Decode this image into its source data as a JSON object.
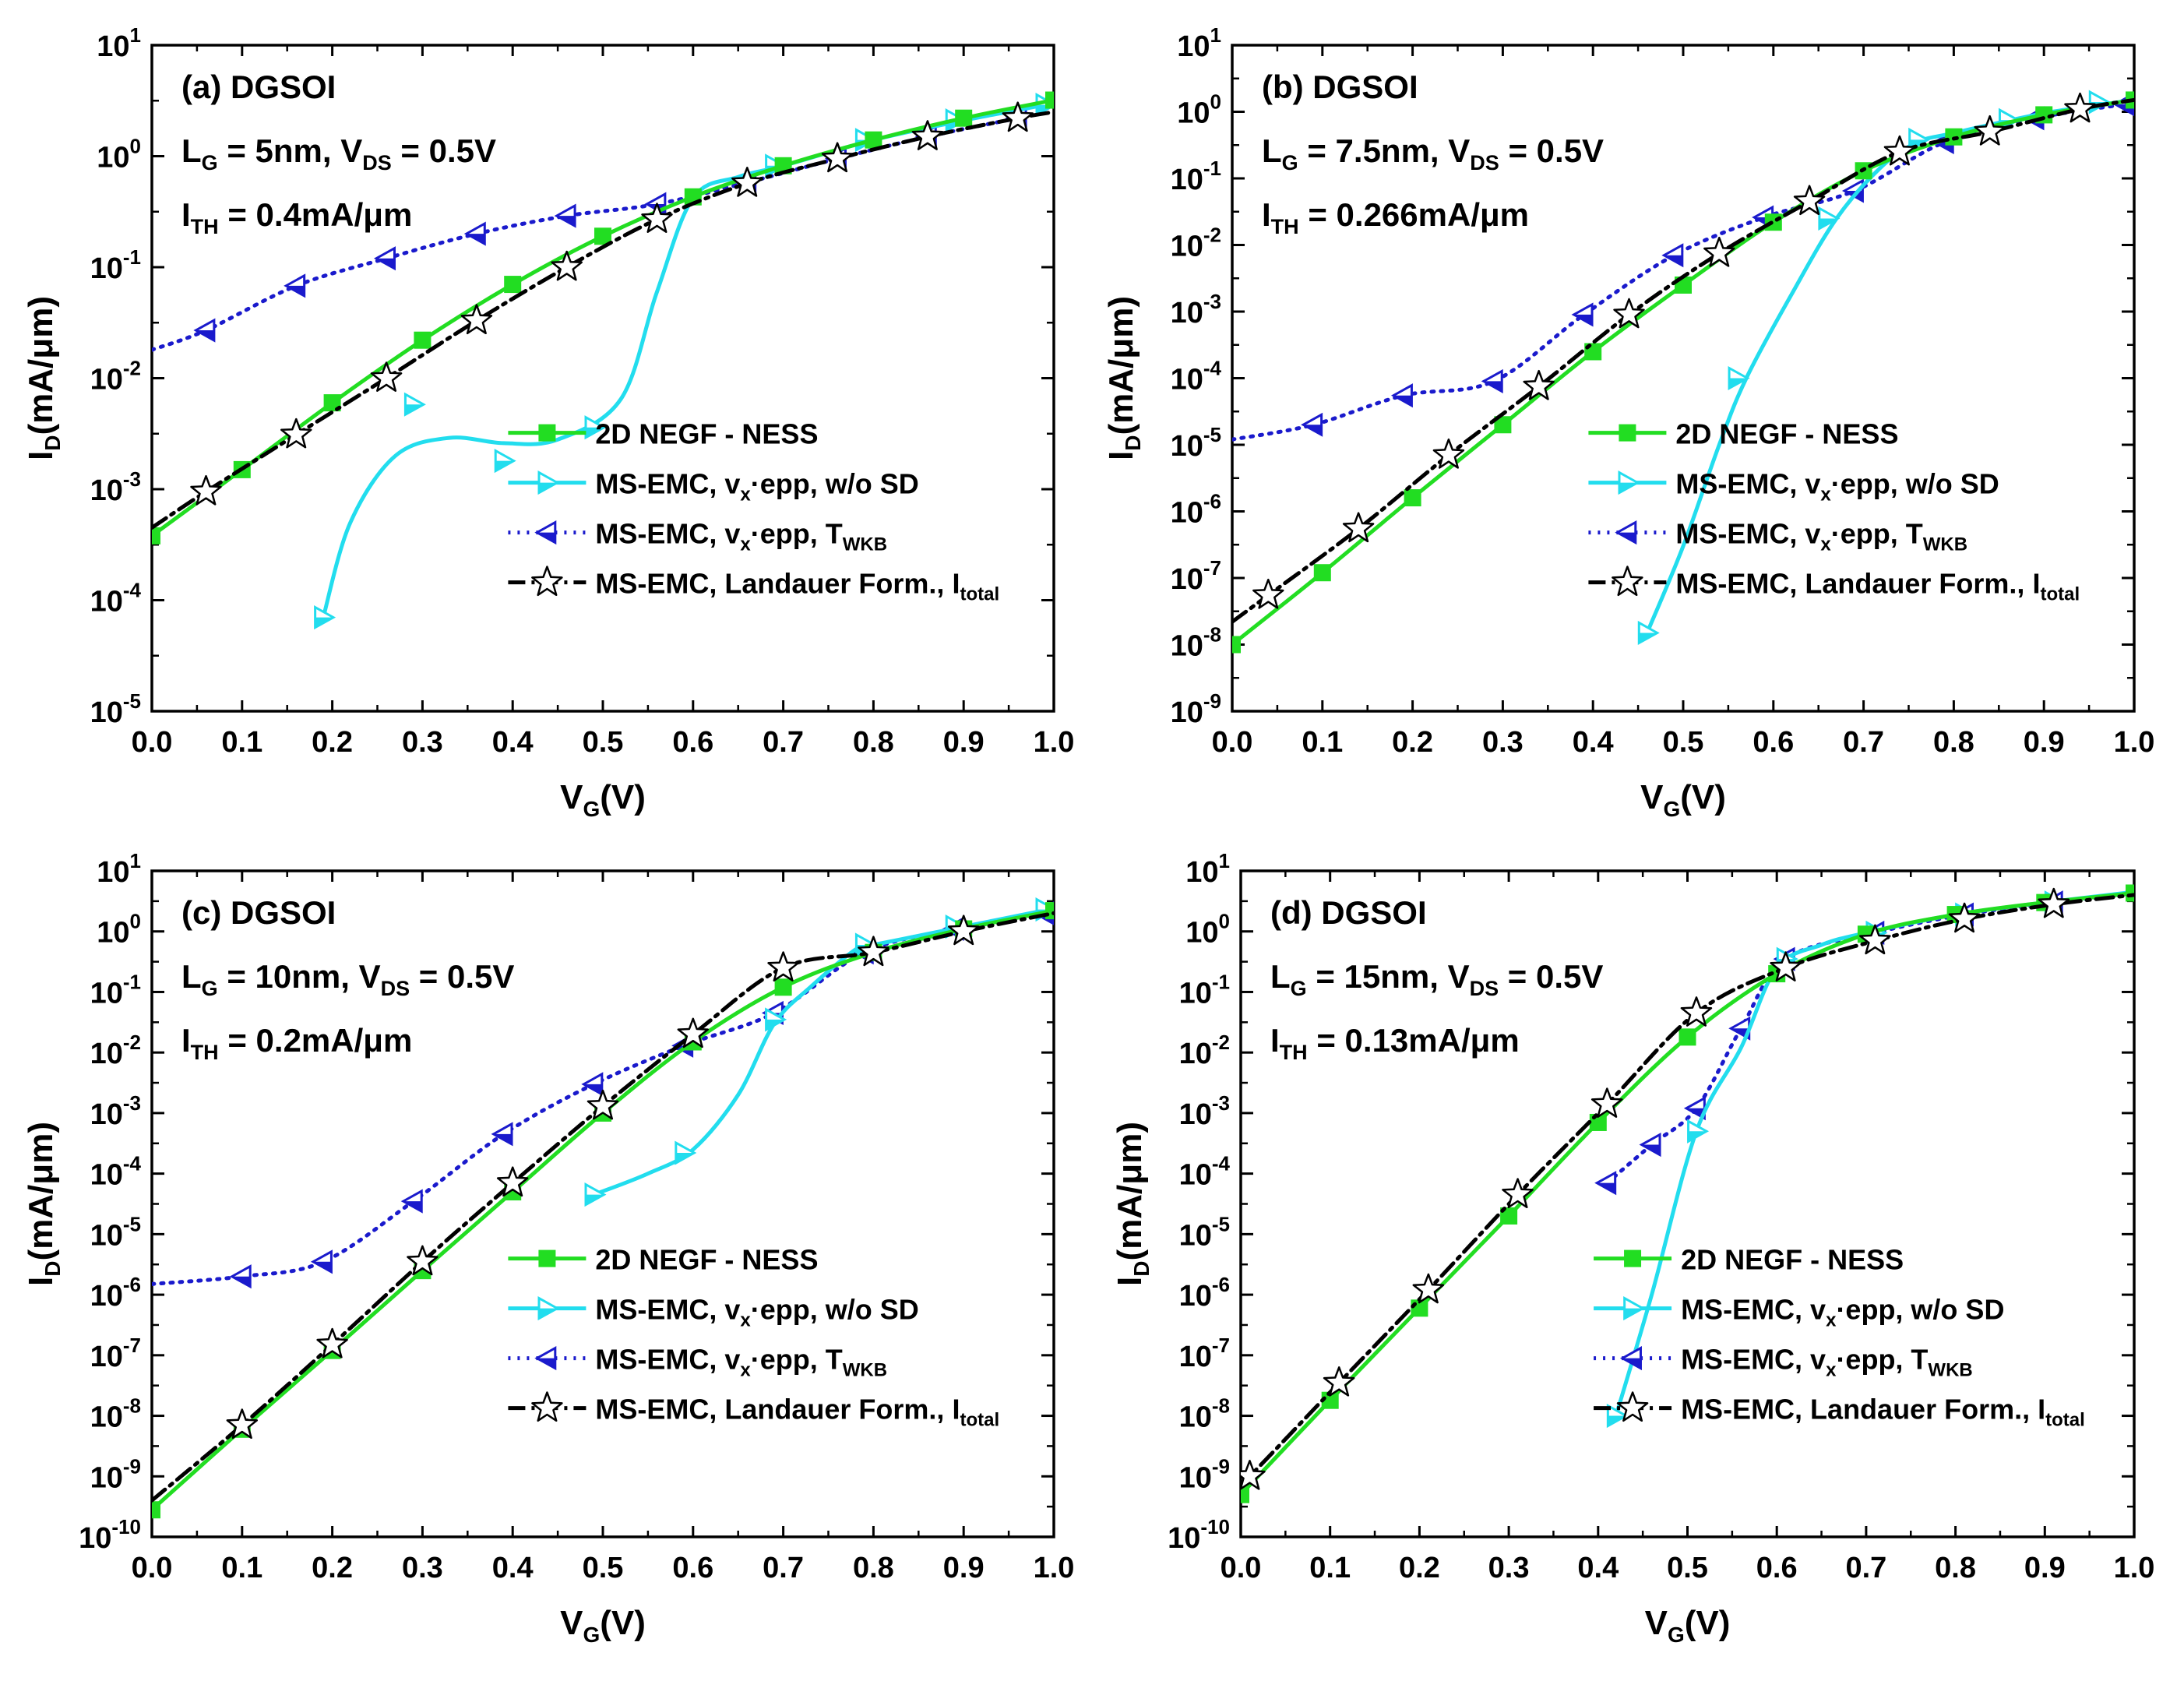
{
  "figure": {
    "background": "#ffffff"
  },
  "styles": {
    "negf": {
      "color": "#22dd22",
      "dash": "solid",
      "marker": "square",
      "legend": "2D NEGF - NESS"
    },
    "nosd": {
      "color": "#22ddee",
      "dash": "solid",
      "marker": "tri-right",
      "legend_main": "MS-EMC, v",
      "legend_sub": "x",
      "legend_rest": "·epp, w/o SD"
    },
    "wkb": {
      "color": "#1a1acc",
      "dash": "dotted",
      "marker": "tri-left",
      "legend_main": "MS-EMC, v",
      "legend_sub": "x",
      "legend_rest": "·epp, T",
      "legend_sub2": "WKB"
    },
    "land": {
      "color": "#000000",
      "dash": "dashdot",
      "marker": "star",
      "legend": "MS-EMC, Landauer Form., I",
      "legend_sub": "total"
    }
  },
  "chart_data": [
    {
      "type": "line",
      "panel": "(a)",
      "title": "(a) DGSOI",
      "annotation_lg_main": "L",
      "annotation_lg_sub": "G",
      "annotation_lg_rest": " = 5nm, V",
      "annotation_vds_sub": "DS",
      "annotation_vds_rest": " = 0.5V",
      "annotation_ith_main": "I",
      "annotation_ith_sub": "TH",
      "annotation_ith_rest": " = 0.4mA/μm",
      "xlabel_main": "V",
      "xlabel_sub": "G",
      "xlabel_rest": "(V)",
      "ylabel_main": "I",
      "ylabel_sub": "D",
      "ylabel_rest": "(mA/μm)",
      "xlim": [
        0,
        1
      ],
      "ylim_exp": [
        -5,
        1
      ],
      "yscale": "log",
      "x_ticks": [
        "0.0",
        "0.1",
        "0.2",
        "0.3",
        "0.4",
        "0.5",
        "0.6",
        "0.7",
        "0.8",
        "0.9",
        "1.0"
      ],
      "y_ticks": [
        {
          "b": "10",
          "e": "-5"
        },
        {
          "b": "10",
          "e": "-4"
        },
        {
          "b": "10",
          "e": "-3"
        },
        {
          "b": "10",
          "e": "-2"
        },
        {
          "b": "10",
          "e": "-1"
        },
        {
          "b": "10",
          "e": "0"
        },
        {
          "b": "10",
          "e": "1"
        }
      ],
      "series": [
        {
          "key": "negf",
          "x": [
            0,
            0.1,
            0.2,
            0.3,
            0.4,
            0.5,
            0.6,
            0.7,
            0.8,
            0.9,
            1.0
          ],
          "y": [
            0.00038,
            0.0015,
            0.006,
            0.022,
            0.07,
            0.19,
            0.43,
            0.82,
            1.4,
            2.2,
            3.2
          ]
        },
        {
          "key": "nosd",
          "x": [
            0.19,
            0.22,
            0.27,
            0.33,
            0.39,
            0.45,
            0.52,
            0.56,
            0.6,
            0.65,
            0.7,
            0.8,
            0.9,
            1.0
          ],
          "y": [
            7e-05,
            0.0005,
            0.002,
            0.0029,
            0.0026,
            0.0028,
            0.0065,
            0.06,
            0.42,
            0.65,
            0.82,
            1.4,
            2.1,
            3.0
          ],
          "mx": [
            0.19,
            0.29,
            0.39,
            0.49,
            0.69,
            0.79,
            0.89,
            0.99
          ],
          "my": [
            7e-05,
            0.0058,
            0.0018,
            0.0036,
            0.82,
            1.4,
            2.1,
            2.9
          ]
        },
        {
          "key": "wkb",
          "x": [
            0,
            0.06,
            0.16,
            0.26,
            0.36,
            0.46,
            0.56,
            0.66,
            0.76,
            0.86,
            0.96
          ],
          "y": [
            0.018,
            0.027,
            0.068,
            0.12,
            0.2,
            0.29,
            0.37,
            0.58,
            0.95,
            1.5,
            2.2
          ]
        },
        {
          "key": "land",
          "x": [
            0,
            0.06,
            0.16,
            0.26,
            0.36,
            0.46,
            0.56,
            0.66,
            0.76,
            0.86,
            0.96,
            1.0
          ],
          "y": [
            0.00045,
            0.00095,
            0.0031,
            0.01,
            0.033,
            0.1,
            0.27,
            0.57,
            0.95,
            1.5,
            2.2,
            2.5
          ]
        }
      ],
      "legend": "lower-right"
    },
    {
      "type": "line",
      "panel": "(b)",
      "title": "(b) DGSOI",
      "annotation_lg_main": "L",
      "annotation_lg_sub": "G",
      "annotation_lg_rest": " = 7.5nm, V",
      "annotation_vds_sub": "DS",
      "annotation_vds_rest": " = 0.5V",
      "annotation_ith_main": "I",
      "annotation_ith_sub": "TH",
      "annotation_ith_rest": " = 0.266mA/μm",
      "xlabel_main": "V",
      "xlabel_sub": "G",
      "xlabel_rest": "(V)",
      "ylabel_main": "I",
      "ylabel_sub": "D",
      "ylabel_rest": "(mA/μm)",
      "xlim": [
        0,
        1
      ],
      "ylim_exp": [
        -9,
        1
      ],
      "yscale": "log",
      "x_ticks": [
        "0.0",
        "0.1",
        "0.2",
        "0.3",
        "0.4",
        "0.5",
        "0.6",
        "0.7",
        "0.8",
        "0.9",
        "1.0"
      ],
      "y_ticks": [
        {
          "b": "10",
          "e": "-9"
        },
        {
          "b": "10",
          "e": "-8"
        },
        {
          "b": "10",
          "e": "-7"
        },
        {
          "b": "10",
          "e": "-6"
        },
        {
          "b": "10",
          "e": "-5"
        },
        {
          "b": "10",
          "e": "-4"
        },
        {
          "b": "10",
          "e": "-3"
        },
        {
          "b": "10",
          "e": "-2"
        },
        {
          "b": "10",
          "e": "-1"
        },
        {
          "b": "10",
          "e": "0"
        },
        {
          "b": "10",
          "e": "1"
        }
      ],
      "series": [
        {
          "key": "negf",
          "x": [
            0,
            0.1,
            0.2,
            0.3,
            0.4,
            0.5,
            0.6,
            0.7,
            0.8,
            0.9,
            1.0
          ],
          "y": [
            1e-08,
            1.2e-07,
            1.6e-06,
            2e-05,
            0.00025,
            0.0025,
            0.022,
            0.13,
            0.42,
            0.9,
            1.5
          ]
        },
        {
          "key": "nosd",
          "x": [
            0.46,
            0.5,
            0.54,
            0.57,
            0.62,
            0.67,
            0.72,
            0.76,
            0.8,
            0.9,
            1.0
          ],
          "y": [
            1.5e-08,
            3e-07,
            1e-05,
            0.0001,
            0.0018,
            0.025,
            0.15,
            0.35,
            0.48,
            0.95,
            1.5
          ],
          "mx": [
            0.46,
            0.56,
            0.66,
            0.76,
            0.86,
            0.96
          ],
          "my": [
            1.5e-08,
            0.0001,
            0.025,
            0.38,
            0.75,
            1.4
          ]
        },
        {
          "key": "wkb",
          "x": [
            0,
            0.09,
            0.19,
            0.29,
            0.39,
            0.49,
            0.59,
            0.69,
            0.79,
            0.89,
            0.99,
            1.0
          ],
          "y": [
            1.2e-05,
            2e-05,
            5.5e-05,
            9e-05,
            0.0009,
            0.007,
            0.026,
            0.065,
            0.35,
            0.8,
            1.3,
            1.4
          ]
        },
        {
          "key": "land",
          "x": [
            0,
            0.04,
            0.14,
            0.24,
            0.34,
            0.44,
            0.54,
            0.64,
            0.74,
            0.84,
            0.94,
            1.0
          ],
          "y": [
            2.2e-08,
            5.5e-08,
            5.5e-07,
            7e-06,
            7.5e-05,
            0.0009,
            0.0075,
            0.045,
            0.25,
            0.5,
            1.1,
            1.5
          ]
        }
      ],
      "legend": "lower-right"
    },
    {
      "type": "line",
      "panel": "(c)",
      "title": "(c) DGSOI",
      "annotation_lg_main": "L",
      "annotation_lg_sub": "G",
      "annotation_lg_rest": " = 10nm, V",
      "annotation_vds_sub": "DS",
      "annotation_vds_rest": " = 0.5V",
      "annotation_ith_main": "I",
      "annotation_ith_sub": "TH",
      "annotation_ith_rest": " = 0.2mA/μm",
      "xlabel_main": "V",
      "xlabel_sub": "G",
      "xlabel_rest": "(V)",
      "ylabel_main": "I",
      "ylabel_sub": "D",
      "ylabel_rest": "(mA/μm)",
      "xlim": [
        0,
        1
      ],
      "ylim_exp": [
        -10,
        1
      ],
      "yscale": "log",
      "x_ticks": [
        "0.0",
        "0.1",
        "0.2",
        "0.3",
        "0.4",
        "0.5",
        "0.6",
        "0.7",
        "0.8",
        "0.9",
        "1.0"
      ],
      "y_ticks": [
        {
          "b": "10",
          "e": "-10"
        },
        {
          "b": "10",
          "e": "-9"
        },
        {
          "b": "10",
          "e": "-8"
        },
        {
          "b": "10",
          "e": "-7"
        },
        {
          "b": "10",
          "e": "-6"
        },
        {
          "b": "10",
          "e": "-5"
        },
        {
          "b": "10",
          "e": "-4"
        },
        {
          "b": "10",
          "e": "-3"
        },
        {
          "b": "10",
          "e": "-2"
        },
        {
          "b": "10",
          "e": "-1"
        },
        {
          "b": "10",
          "e": "0"
        },
        {
          "b": "10",
          "e": "1"
        }
      ],
      "series": [
        {
          "key": "negf",
          "x": [
            0,
            0.1,
            0.2,
            0.3,
            0.4,
            0.5,
            0.6,
            0.7,
            0.8,
            0.9,
            1.0
          ],
          "y": [
            2.8e-10,
            6e-09,
            1.2e-07,
            2.5e-06,
            5e-05,
            0.001,
            0.015,
            0.12,
            0.45,
            1.1,
            2.2
          ]
        },
        {
          "key": "nosd",
          "x": [
            0.49,
            0.55,
            0.6,
            0.65,
            0.69,
            0.73,
            0.78,
            0.8,
            0.9,
            1.0
          ],
          "y": [
            4.5e-05,
            0.0001,
            0.00025,
            0.002,
            0.03,
            0.12,
            0.5,
            0.6,
            1.2,
            2.4
          ],
          "mx": [
            0.49,
            0.59,
            0.69,
            0.79,
            0.89,
            0.99
          ],
          "my": [
            4.5e-05,
            0.00022,
            0.035,
            0.6,
            1.2,
            2.3
          ]
        },
        {
          "key": "wkb",
          "x": [
            0,
            0.1,
            0.19,
            0.29,
            0.39,
            0.49,
            0.59,
            0.69,
            0.79,
            0.89,
            0.99
          ],
          "y": [
            1.5e-06,
            2e-06,
            3.5e-06,
            3.5e-05,
            0.00045,
            0.003,
            0.013,
            0.045,
            0.45,
            1.1,
            2.0
          ]
        },
        {
          "key": "land",
          "x": [
            0,
            0.1,
            0.2,
            0.3,
            0.4,
            0.5,
            0.6,
            0.7,
            0.8,
            0.9,
            1.0
          ],
          "y": [
            4e-10,
            7e-09,
            1.5e-07,
            3.5e-06,
            7e-05,
            0.0013,
            0.02,
            0.25,
            0.45,
            1.0,
            2.0
          ]
        }
      ],
      "legend": "lower-right"
    },
    {
      "type": "line",
      "panel": "(d)",
      "title": "(d) DGSOI",
      "annotation_lg_main": "L",
      "annotation_lg_sub": "G",
      "annotation_lg_rest": " = 15nm, V",
      "annotation_vds_sub": "DS",
      "annotation_vds_rest": " = 0.5V",
      "annotation_ith_main": "I",
      "annotation_ith_sub": "TH",
      "annotation_ith_rest": " = 0.13mA/μm",
      "xlabel_main": "V",
      "xlabel_sub": "G",
      "xlabel_rest": "(V)",
      "ylabel_main": "I",
      "ylabel_sub": "D",
      "ylabel_rest": "(mA/μm)",
      "xlim": [
        0,
        1
      ],
      "ylim_exp": [
        -10,
        1
      ],
      "yscale": "log",
      "x_ticks": [
        "0.0",
        "0.1",
        "0.2",
        "0.3",
        "0.4",
        "0.5",
        "0.6",
        "0.7",
        "0.8",
        "0.9",
        "1.0"
      ],
      "y_ticks": [
        {
          "b": "10",
          "e": "-10"
        },
        {
          "b": "10",
          "e": "-9"
        },
        {
          "b": "10",
          "e": "-8"
        },
        {
          "b": "10",
          "e": "-7"
        },
        {
          "b": "10",
          "e": "-6"
        },
        {
          "b": "10",
          "e": "-5"
        },
        {
          "b": "10",
          "e": "-4"
        },
        {
          "b": "10",
          "e": "-3"
        },
        {
          "b": "10",
          "e": "-2"
        },
        {
          "b": "10",
          "e": "-1"
        },
        {
          "b": "10",
          "e": "0"
        },
        {
          "b": "10",
          "e": "1"
        }
      ],
      "series": [
        {
          "key": "negf",
          "x": [
            0,
            0.1,
            0.2,
            0.3,
            0.4,
            0.5,
            0.6,
            0.7,
            0.8,
            0.9,
            1.0
          ],
          "y": [
            5e-10,
            1.8e-08,
            6e-07,
            2e-05,
            0.0007,
            0.018,
            0.2,
            0.9,
            1.9,
            3.0,
            4.3
          ]
        },
        {
          "key": "nosd",
          "x": [
            0.42,
            0.46,
            0.51,
            0.56,
            0.6,
            0.65,
            0.7,
            0.8,
            0.9,
            1.0
          ],
          "y": [
            1e-08,
            1e-06,
            0.0005,
            0.012,
            0.25,
            0.6,
            0.95,
            1.9,
            3.0,
            4.5
          ],
          "mx": [
            0.42,
            0.51,
            0.61,
            0.71,
            0.81,
            0.91
          ],
          "my": [
            1e-08,
            0.0005,
            0.35,
            0.95,
            1.9,
            3.0
          ]
        },
        {
          "key": "wkb",
          "x": [
            0.41,
            0.46,
            0.51,
            0.56,
            0.61,
            0.71,
            0.81,
            0.91,
            1.0
          ],
          "y": [
            7e-05,
            0.0003,
            0.0012,
            0.025,
            0.35,
            0.95,
            1.9,
            3.0,
            4.3
          ]
        },
        {
          "key": "land",
          "x": [
            0,
            0.01,
            0.11,
            0.21,
            0.31,
            0.41,
            0.51,
            0.61,
            0.71,
            0.81,
            0.91,
            1.0
          ],
          "y": [
            8e-10,
            1e-09,
            3.5e-08,
            1.2e-06,
            4.5e-05,
            0.0014,
            0.045,
            0.25,
            0.7,
            1.6,
            2.8,
            4.0
          ]
        }
      ],
      "legend": "lower-right"
    }
  ]
}
